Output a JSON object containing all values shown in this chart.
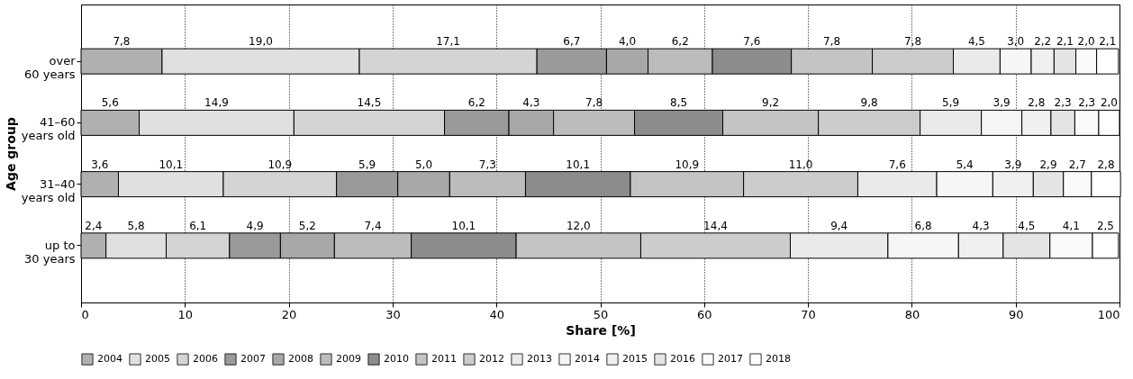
{
  "chart_data": {
    "type": "bar",
    "orientation": "horizontal",
    "stacked": true,
    "xlabel": "Share [%]",
    "ylabel": "Age group",
    "categories": [
      "over\n60 years",
      "41–60\nyears old",
      "31–40\nyears old",
      "up to\n30 years"
    ],
    "xlim": [
      0,
      100
    ],
    "xticks": [
      0,
      10,
      20,
      30,
      40,
      50,
      60,
      70,
      80,
      90,
      100
    ],
    "grid": "x",
    "legend": "bottom",
    "series": [
      {
        "name": "2004",
        "color": "#b0b0b0",
        "values": [
          7.8,
          5.6,
          3.6,
          2.4
        ],
        "value_labels": [
          "7,8",
          "5,6",
          "3,6",
          "2,4"
        ]
      },
      {
        "name": "2005",
        "color": "#e0e0e0",
        "values": [
          19.0,
          14.9,
          10.1,
          5.8
        ],
        "value_labels": [
          "19,0",
          "14,9",
          "10,1",
          "5,8"
        ]
      },
      {
        "name": "2006",
        "color": "#d4d4d4",
        "values": [
          17.1,
          14.5,
          10.9,
          6.1
        ],
        "value_labels": [
          "17,1",
          "14,5",
          "10,9",
          "6,1"
        ]
      },
      {
        "name": "2007",
        "color": "#9a9a9a",
        "values": [
          6.7,
          6.2,
          5.9,
          4.9
        ],
        "value_labels": [
          "6,7",
          "6,2",
          "5,9",
          "4,9"
        ]
      },
      {
        "name": "2008",
        "color": "#a8a8a8",
        "values": [
          4.0,
          4.3,
          5.0,
          5.2
        ],
        "value_labels": [
          "4,0",
          "4,3",
          "5,0",
          "5,2"
        ]
      },
      {
        "name": "2009",
        "color": "#bcbcbc",
        "values": [
          6.2,
          7.8,
          7.3,
          7.4
        ],
        "value_labels": [
          "6,2",
          "7,8",
          "7,3",
          "7,4"
        ]
      },
      {
        "name": "2010",
        "color": "#8c8c8c",
        "values": [
          7.6,
          8.5,
          10.1,
          10.1
        ],
        "value_labels": [
          "7,6",
          "8,5",
          "10,1",
          "10,1"
        ]
      },
      {
        "name": "2011",
        "color": "#c4c4c4",
        "values": [
          7.8,
          9.2,
          10.9,
          12.0
        ],
        "value_labels": [
          "7,8",
          "9,2",
          "10,9",
          "12,0"
        ]
      },
      {
        "name": "2012",
        "color": "#cccccc",
        "values": [
          7.8,
          9.8,
          11.0,
          14.4
        ],
        "value_labels": [
          "7,8",
          "9,8",
          "11,0",
          "14,4"
        ]
      },
      {
        "name": "2013",
        "color": "#eaeaea",
        "values": [
          4.5,
          5.9,
          7.6,
          9.4
        ],
        "value_labels": [
          "4,5",
          "5,9",
          "7,6",
          "9,4"
        ]
      },
      {
        "name": "2014",
        "color": "#f6f6f6",
        "values": [
          3.0,
          3.9,
          5.4,
          6.8
        ],
        "value_labels": [
          "3,0",
          "3,9",
          "5,4",
          "6,8"
        ]
      },
      {
        "name": "2015",
        "color": "#f0f0f0",
        "values": [
          2.2,
          2.8,
          3.9,
          4.3
        ],
        "value_labels": [
          "2,2",
          "2,8",
          "3,9",
          "4,3"
        ]
      },
      {
        "name": "2016",
        "color": "#e4e4e4",
        "values": [
          2.1,
          2.3,
          2.9,
          4.5
        ],
        "value_labels": [
          "2,1",
          "2,3",
          "2,9",
          "4,5"
        ]
      },
      {
        "name": "2017",
        "color": "#fafafa",
        "values": [
          2.0,
          2.3,
          2.7,
          4.1
        ],
        "value_labels": [
          "2,0",
          "2,3",
          "2,7",
          "4,1"
        ]
      },
      {
        "name": "2018",
        "color": "#ffffff",
        "values": [
          2.1,
          2.0,
          2.8,
          2.5
        ],
        "value_labels": [
          "2,1",
          "2,0",
          "2,8",
          "2,5"
        ]
      }
    ]
  }
}
